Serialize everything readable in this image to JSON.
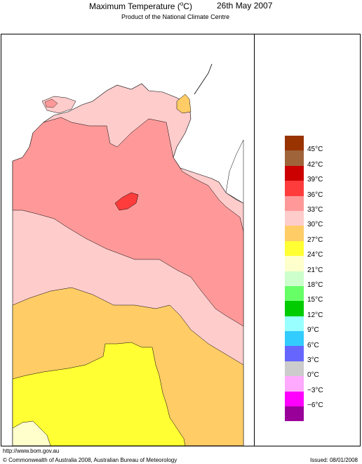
{
  "header": {
    "title_prefix": "Maximum Temperature (",
    "title_degree": "o",
    "title_suffix": "C)",
    "date": "26th May 2007",
    "subtitle": "Product of the National Climate Centre"
  },
  "legend": {
    "items": [
      {
        "label": "45°C",
        "color": "#993300"
      },
      {
        "label": "42°C",
        "color": "#a0643a"
      },
      {
        "label": "39°C",
        "color": "#cc0000"
      },
      {
        "label": "36°C",
        "color": "#ff3c3c"
      },
      {
        "label": "33°C",
        "color": "#ff9999"
      },
      {
        "label": "30°C",
        "color": "#ffcccc"
      },
      {
        "label": "27°C",
        "color": "#ffcc66"
      },
      {
        "label": "24°C",
        "color": "#ffff33"
      },
      {
        "label": "21°C",
        "color": "#ffffcc"
      },
      {
        "label": "18°C",
        "color": "#ccffcc"
      },
      {
        "label": "15°C",
        "color": "#66ff66"
      },
      {
        "label": "12°C",
        "color": "#00cc00"
      },
      {
        "label": "9°C",
        "color": "#99ffff"
      },
      {
        "label": "6°C",
        "color": "#33ccff"
      },
      {
        "label": "3°C",
        "color": "#6666ff"
      },
      {
        "label": "0°C",
        "color": "#cccccc"
      },
      {
        "label": "−3°C",
        "color": "#ffaaff"
      },
      {
        "label": "−6°C",
        "color": "#ff00ff"
      },
      {
        "label": "",
        "color": "#990099"
      }
    ]
  },
  "map": {
    "colors": {
      "sea": "#ffffff",
      "band_30": "#ffcccc",
      "band_33": "#ff9999",
      "band_36": "#ff3c3c",
      "band_27": "#ffcc66",
      "band_24": "#ffff33",
      "band_21": "#ffffcc"
    }
  },
  "footer": {
    "url": "http://www.bom.gov.au",
    "copyright": "© Commonwealth of Australia 2008, Australian Bureau of Meteorology",
    "issued": "Issued: 08/01/2008"
  }
}
